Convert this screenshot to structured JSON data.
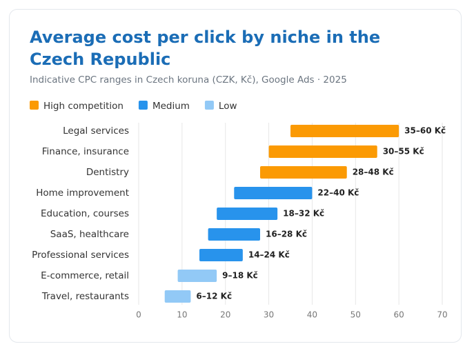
{
  "chart_data": {
    "type": "range-bar",
    "title": "Average cost per click by niche in the Czech Republic",
    "subtitle": "Indicative CPC ranges in Czech koruna (CZK, Kč), Google Ads · 2025",
    "categories": [
      "Legal services",
      "Finance, insurance",
      "Dentistry",
      "Home improvement",
      "Education, courses",
      "SaaS, healthcare",
      "Professional services",
      "E-commerce, retail",
      "Travel, restaurants"
    ],
    "series": [
      {
        "name": "High competition",
        "color": "#fb9a04",
        "start": [
          35,
          30,
          28,
          null,
          null,
          null,
          null,
          null,
          null
        ],
        "end": [
          60,
          55,
          48,
          null,
          null,
          null,
          null,
          null,
          null
        ],
        "value_labels": [
          "35–60 Kč",
          "30–55 Kč",
          "28–48 Kč",
          null,
          null,
          null,
          null,
          null,
          null
        ]
      },
      {
        "name": "Medium",
        "color": "#2893ec",
        "start": [
          null,
          null,
          null,
          22,
          18,
          16,
          14,
          null,
          null
        ],
        "end": [
          null,
          null,
          null,
          40,
          32,
          28,
          24,
          null,
          null
        ],
        "value_labels": [
          null,
          null,
          null,
          "22–40 Kč",
          "18–32 Kč",
          "16–28 Kč",
          "14–24 Kč",
          null,
          null
        ]
      },
      {
        "name": "Low",
        "color": "#92c9f6",
        "start": [
          null,
          null,
          null,
          null,
          null,
          null,
          null,
          9,
          6
        ],
        "end": [
          null,
          null,
          null,
          null,
          null,
          null,
          null,
          18,
          12
        ],
        "value_labels": [
          null,
          null,
          null,
          null,
          null,
          null,
          null,
          "9–18 Kč",
          "6–12 Kč"
        ]
      }
    ],
    "xlim": [
      0,
      70
    ],
    "xticks": [
      0,
      10,
      20,
      30,
      40,
      50,
      60,
      70
    ],
    "grid": true,
    "legend": "top-left"
  }
}
